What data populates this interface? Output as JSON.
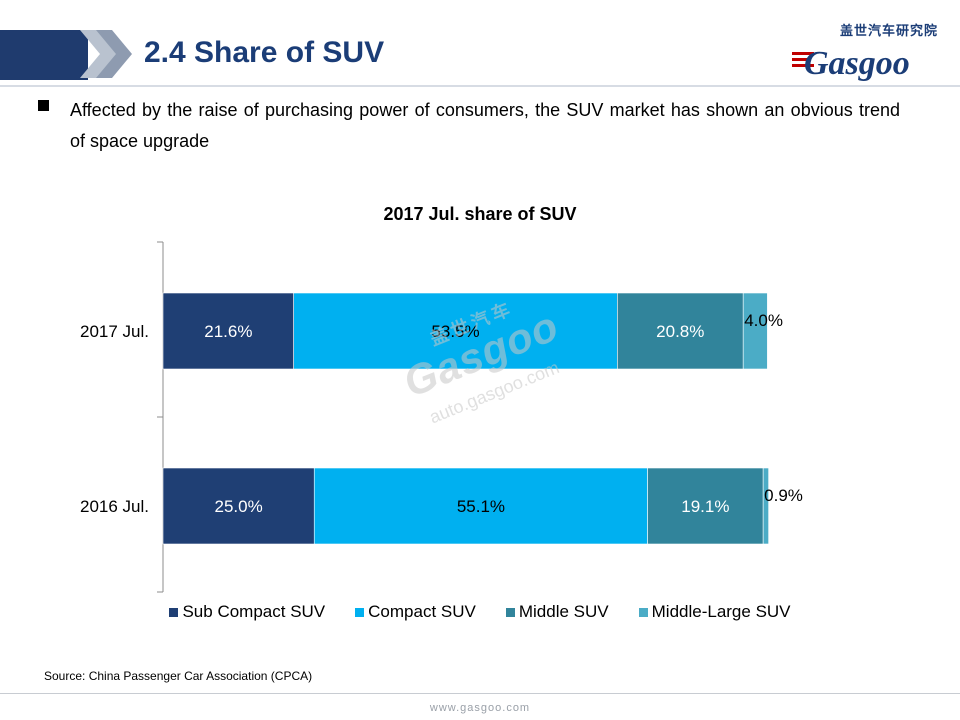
{
  "header": {
    "title": "2.4 Share of SUV",
    "logo_cn": "盖世汽车研究院",
    "logo_word": "Gasgoo"
  },
  "bullet": {
    "text": "Affected by the raise of purchasing power of consumers, the SUV market has shown an obvious trend of space upgrade"
  },
  "watermark": {
    "cn": "盖世汽车",
    "word": "Gasgoo",
    "url": "auto.gasgoo.com"
  },
  "chart_data": {
    "type": "bar",
    "orientation": "horizontal",
    "stacked": "percent",
    "title": "2017 Jul. share of SUV",
    "categories": [
      "2017 Jul.",
      "2016 Jul."
    ],
    "series": [
      {
        "name": "Sub Compact SUV",
        "values": [
          21.6,
          25.0
        ],
        "labels": [
          "21.6%",
          "25.0%"
        ],
        "color": "#1f3f74",
        "label_color": "#ffffff"
      },
      {
        "name": "Compact SUV",
        "values": [
          53.5,
          55.1
        ],
        "labels": [
          "53.5%",
          "55.1%"
        ],
        "color": "#00b0f0",
        "label_color": "#000000"
      },
      {
        "name": "Middle SUV",
        "values": [
          20.8,
          19.1
        ],
        "labels": [
          "20.8%",
          "19.1%"
        ],
        "color": "#31849b",
        "label_color": "#ffffff"
      },
      {
        "name": "Middle-Large SUV",
        "values": [
          4.0,
          0.9
        ],
        "labels": [
          "4.0%",
          "0.9%"
        ],
        "color": "#4bacc6",
        "label_color": "#000000"
      }
    ],
    "xlim": [
      0,
      100
    ],
    "grid": false,
    "legend": "bottom"
  },
  "footer": {
    "source": "Source: China Passenger Car Association (CPCA)",
    "url": "www.gasgoo.com"
  }
}
